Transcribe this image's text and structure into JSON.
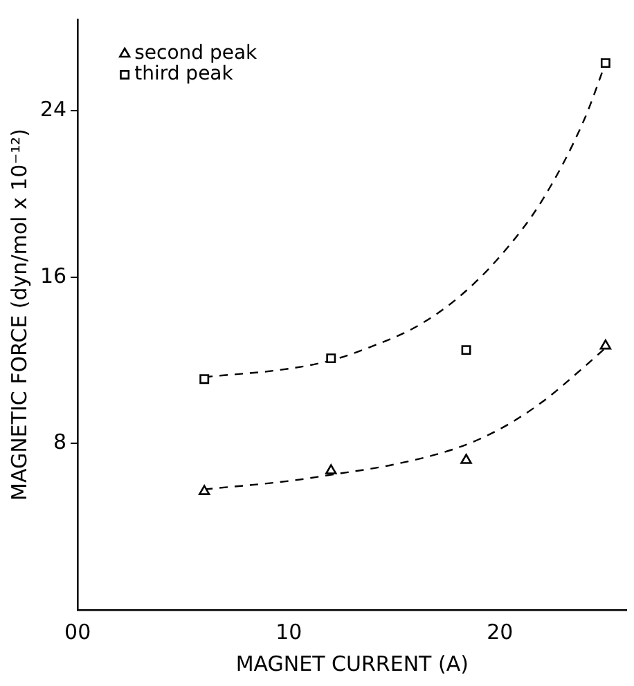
{
  "chart_data": {
    "type": "scatter",
    "xlabel": "MAGNET CURRENT (A)",
    "ylabel": "MAGNETIC FORCE (dyn/mol x 10⁻¹²)",
    "xlim": [
      0,
      26
    ],
    "xticks": [
      {
        "value": 0,
        "label": "00"
      },
      10,
      20
    ],
    "ylim": [
      0,
      28.4
    ],
    "yticks": [
      8,
      16,
      24
    ],
    "grid": false,
    "legend": "top left",
    "series": [
      {
        "name": "second peak",
        "color": "#000000",
        "marker": "triangle",
        "x": [
          6,
          12,
          18.4,
          25
        ],
        "values": [
          5.7,
          6.7,
          7.2,
          12.7
        ]
      },
      {
        "name": "third peak",
        "color": "#000000",
        "marker": "square",
        "x": [
          6,
          12,
          18.4,
          25
        ],
        "values": [
          11.1,
          12.1,
          12.5,
          26.3
        ]
      },
      {
        "type": "line",
        "color": "#000000",
        "marker": "none",
        "line_style": "dashed",
        "x": [
          6,
          10,
          12,
          14,
          16,
          18,
          20,
          22,
          24,
          25
        ],
        "values": [
          11.2,
          11.6,
          12.0,
          12.7,
          13.6,
          15.0,
          17.0,
          19.7,
          23.6,
          26.3
        ]
      },
      {
        "type": "line",
        "color": "#000000",
        "marker": "none",
        "line_style": "dashed",
        "x": [
          6,
          10,
          12,
          15,
          18,
          20,
          22,
          24,
          25
        ],
        "values": [
          5.8,
          6.2,
          6.5,
          7.0,
          7.8,
          8.7,
          10.0,
          11.7,
          12.6
        ]
      }
    ]
  }
}
